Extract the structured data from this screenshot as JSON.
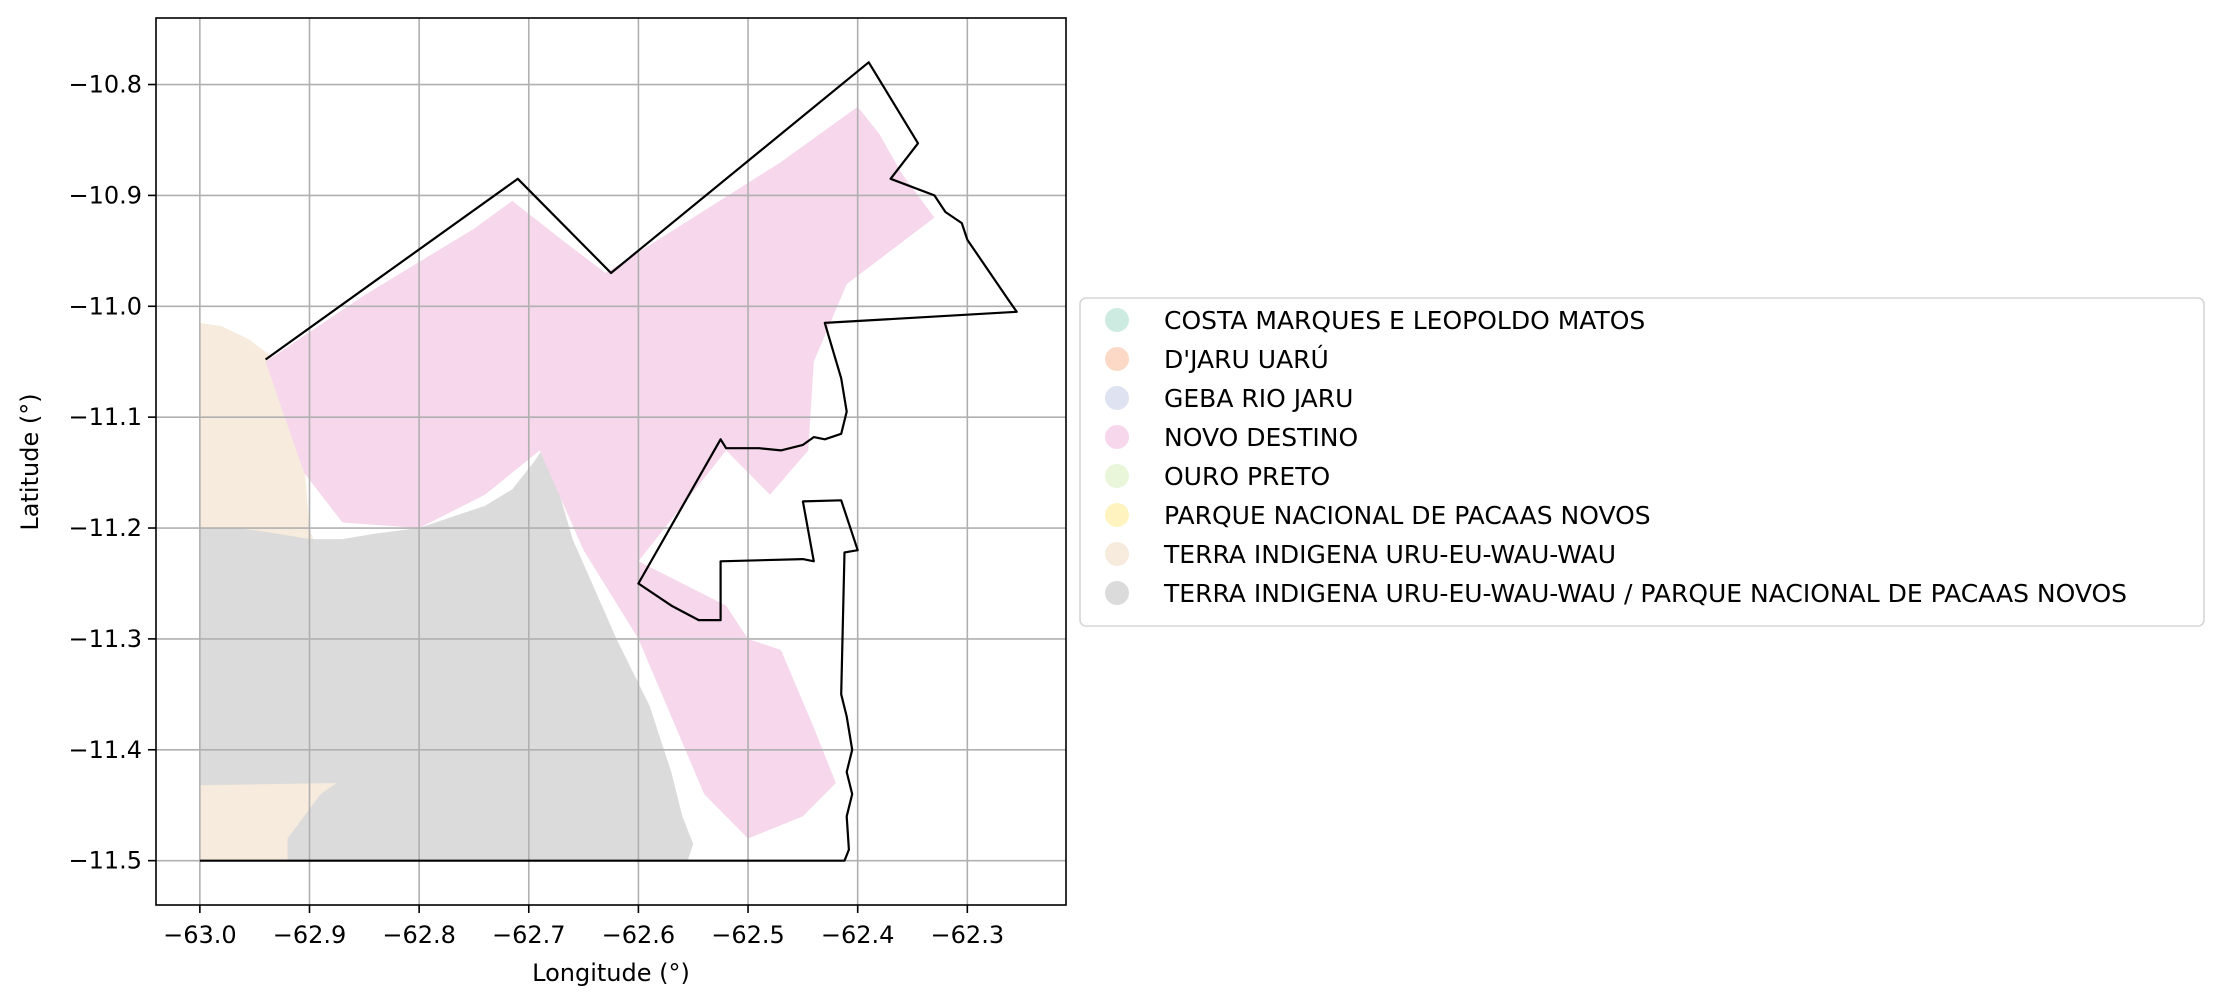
{
  "chart_data": {
    "type": "map",
    "xlabel": "Longitude (°)",
    "ylabel": "Latitude (°)",
    "xlim": [
      -63.04,
      -62.21
    ],
    "ylim": [
      -11.54,
      -10.74
    ],
    "grid": true,
    "legend_placement": "center-right, outside axes",
    "x_ticks": [
      {
        "value": -63.0,
        "label": "−63.0"
      },
      {
        "value": -62.9,
        "label": "−62.9"
      },
      {
        "value": -62.8,
        "label": "−62.8"
      },
      {
        "value": -62.7,
        "label": "−62.7"
      },
      {
        "value": -62.6,
        "label": "−62.6"
      },
      {
        "value": -62.5,
        "label": "−62.5"
      },
      {
        "value": -62.4,
        "label": "−62.4"
      },
      {
        "value": -62.3,
        "label": "−62.3"
      }
    ],
    "y_ticks": [
      {
        "value": -10.8,
        "label": "−10.8"
      },
      {
        "value": -10.9,
        "label": "−10.9"
      },
      {
        "value": -11.0,
        "label": "−11.0"
      },
      {
        "value": -11.1,
        "label": "−11.1"
      },
      {
        "value": -11.2,
        "label": "−11.2"
      },
      {
        "value": -11.3,
        "label": "−11.3"
      },
      {
        "value": -11.4,
        "label": "−11.4"
      },
      {
        "value": -11.5,
        "label": "−11.5"
      }
    ],
    "legend": [
      {
        "label": "COSTA MARQUES E LEOPOLDO MATOS",
        "color": "#cdebe0"
      },
      {
        "label": "D'JARU UARÚ",
        "color": "#fbd9c6"
      },
      {
        "label": "GEBA RIO JARU",
        "color": "#dfe3f1"
      },
      {
        "label": "NOVO DESTINO",
        "color": "#f6d7eb"
      },
      {
        "label": "OURO PRETO",
        "color": "#e9f6da"
      },
      {
        "label": "PARQUE NACIONAL DE PACAAS NOVOS",
        "color": "#fff4c0"
      },
      {
        "label": "TERRA INDIGENA URU-EU-WAU-WAU",
        "color": "#f6ebdc"
      },
      {
        "label": "TERRA INDIGENA URU-EU-WAU-WAU / PARQUE NACIONAL DE PACAAS NOVOS",
        "color": "#dbdbdb"
      }
    ],
    "regions": [
      {
        "name": "TERRA INDIGENA URU-EU-WAU-WAU",
        "color": "#f6ebdc",
        "polygon": [
          [
            -63.0,
            -11.015
          ],
          [
            -62.98,
            -11.018
          ],
          [
            -62.955,
            -11.03
          ],
          [
            -62.935,
            -11.045
          ],
          [
            -62.915,
            -11.09
          ],
          [
            -62.905,
            -11.14
          ],
          [
            -62.9,
            -11.2
          ],
          [
            -62.895,
            -11.215
          ],
          [
            -62.8,
            -11.21
          ],
          [
            -62.72,
            -11.175
          ],
          [
            -62.69,
            -11.135
          ],
          [
            -62.655,
            -11.25
          ],
          [
            -62.6,
            -11.36
          ],
          [
            -62.58,
            -11.42
          ],
          [
            -62.57,
            -11.47
          ],
          [
            -62.555,
            -11.5
          ],
          [
            -63.0,
            -11.5
          ]
        ]
      },
      {
        "name": "TERRA INDIGENA URU-EU-WAU-WAU / PARQUE NACIONAL DE PACAAS NOVOS",
        "color": "#dbdbdb",
        "polygon": [
          [
            -63.0,
            -11.2
          ],
          [
            -62.965,
            -11.2
          ],
          [
            -62.93,
            -11.205
          ],
          [
            -62.9,
            -11.21
          ],
          [
            -62.87,
            -11.21
          ],
          [
            -62.84,
            -11.205
          ],
          [
            -62.8,
            -11.2
          ],
          [
            -62.77,
            -11.19
          ],
          [
            -62.74,
            -11.18
          ],
          [
            -62.715,
            -11.165
          ],
          [
            -62.695,
            -11.14
          ],
          [
            -62.685,
            -11.125
          ],
          [
            -62.66,
            -11.21
          ],
          [
            -62.62,
            -11.3
          ],
          [
            -62.59,
            -11.36
          ],
          [
            -62.57,
            -11.42
          ],
          [
            -62.56,
            -11.46
          ],
          [
            -62.55,
            -11.485
          ],
          [
            -62.555,
            -11.5
          ],
          [
            -62.92,
            -11.5
          ],
          [
            -62.92,
            -11.48
          ],
          [
            -62.89,
            -11.44
          ],
          [
            -62.875,
            -11.43
          ],
          [
            -63.0,
            -11.432
          ]
        ]
      },
      {
        "name": "NOVO DESTINO",
        "color": "#f6d7eb",
        "polygon": [
          [
            -62.94,
            -11.05
          ],
          [
            -62.85,
            -10.99
          ],
          [
            -62.75,
            -10.93
          ],
          [
            -62.715,
            -10.905
          ],
          [
            -62.67,
            -10.94
          ],
          [
            -62.63,
            -10.97
          ],
          [
            -62.55,
            -10.92
          ],
          [
            -62.47,
            -10.87
          ],
          [
            -62.4,
            -10.82
          ],
          [
            -62.38,
            -10.845
          ],
          [
            -62.36,
            -10.88
          ],
          [
            -62.33,
            -10.92
          ],
          [
            -62.41,
            -10.98
          ],
          [
            -62.44,
            -11.05
          ],
          [
            -62.445,
            -11.13
          ],
          [
            -62.48,
            -11.17
          ],
          [
            -62.52,
            -11.13
          ],
          [
            -62.6,
            -11.23
          ],
          [
            -62.52,
            -11.27
          ],
          [
            -62.5,
            -11.3
          ],
          [
            -62.47,
            -11.31
          ],
          [
            -62.44,
            -11.38
          ],
          [
            -62.42,
            -11.43
          ],
          [
            -62.45,
            -11.46
          ],
          [
            -62.5,
            -11.48
          ],
          [
            -62.54,
            -11.44
          ],
          [
            -62.6,
            -11.3
          ],
          [
            -62.65,
            -11.22
          ],
          [
            -62.69,
            -11.13
          ],
          [
            -62.74,
            -11.17
          ],
          [
            -62.8,
            -11.2
          ],
          [
            -62.87,
            -11.195
          ],
          [
            -62.905,
            -11.15
          ]
        ]
      }
    ],
    "boundary": [
      [
        -62.94,
        -11.048
      ],
      [
        -62.83,
        -10.97
      ],
      [
        -62.71,
        -10.885
      ],
      [
        -62.625,
        -10.97
      ],
      [
        -62.39,
        -10.78
      ],
      [
        -62.345,
        -10.853
      ],
      [
        -62.37,
        -10.885
      ],
      [
        -62.33,
        -10.9
      ],
      [
        -62.32,
        -10.915
      ],
      [
        -62.305,
        -10.925
      ],
      [
        -62.3,
        -10.94
      ],
      [
        -62.262,
        -10.995
      ],
      [
        -62.255,
        -11.005
      ],
      [
        -62.43,
        -11.015
      ],
      [
        -62.415,
        -11.065
      ],
      [
        -62.41,
        -11.095
      ],
      [
        -62.415,
        -11.115
      ],
      [
        -62.43,
        -11.12
      ],
      [
        -62.44,
        -11.118
      ],
      [
        -62.45,
        -11.125
      ],
      [
        -62.47,
        -11.13
      ],
      [
        -62.49,
        -11.128
      ],
      [
        -62.52,
        -11.128
      ],
      [
        -62.525,
        -11.12
      ],
      [
        -62.6,
        -11.25
      ],
      [
        -62.57,
        -11.27
      ],
      [
        -62.545,
        -11.283
      ],
      [
        -62.525,
        -11.283
      ],
      [
        -62.525,
        -11.23
      ],
      [
        -62.45,
        -11.228
      ],
      [
        -62.44,
        -11.23
      ],
      [
        -62.45,
        -11.176
      ],
      [
        -62.415,
        -11.175
      ],
      [
        -62.4,
        -11.22
      ],
      [
        -62.412,
        -11.222
      ],
      [
        -62.415,
        -11.35
      ],
      [
        -62.41,
        -11.37
      ],
      [
        -62.405,
        -11.4
      ],
      [
        -62.41,
        -11.42
      ],
      [
        -62.405,
        -11.44
      ],
      [
        -62.41,
        -11.46
      ],
      [
        -62.408,
        -11.49
      ],
      [
        -62.412,
        -11.5
      ],
      [
        -62.54,
        -11.5
      ],
      [
        -63.0,
        -11.5
      ]
    ]
  }
}
